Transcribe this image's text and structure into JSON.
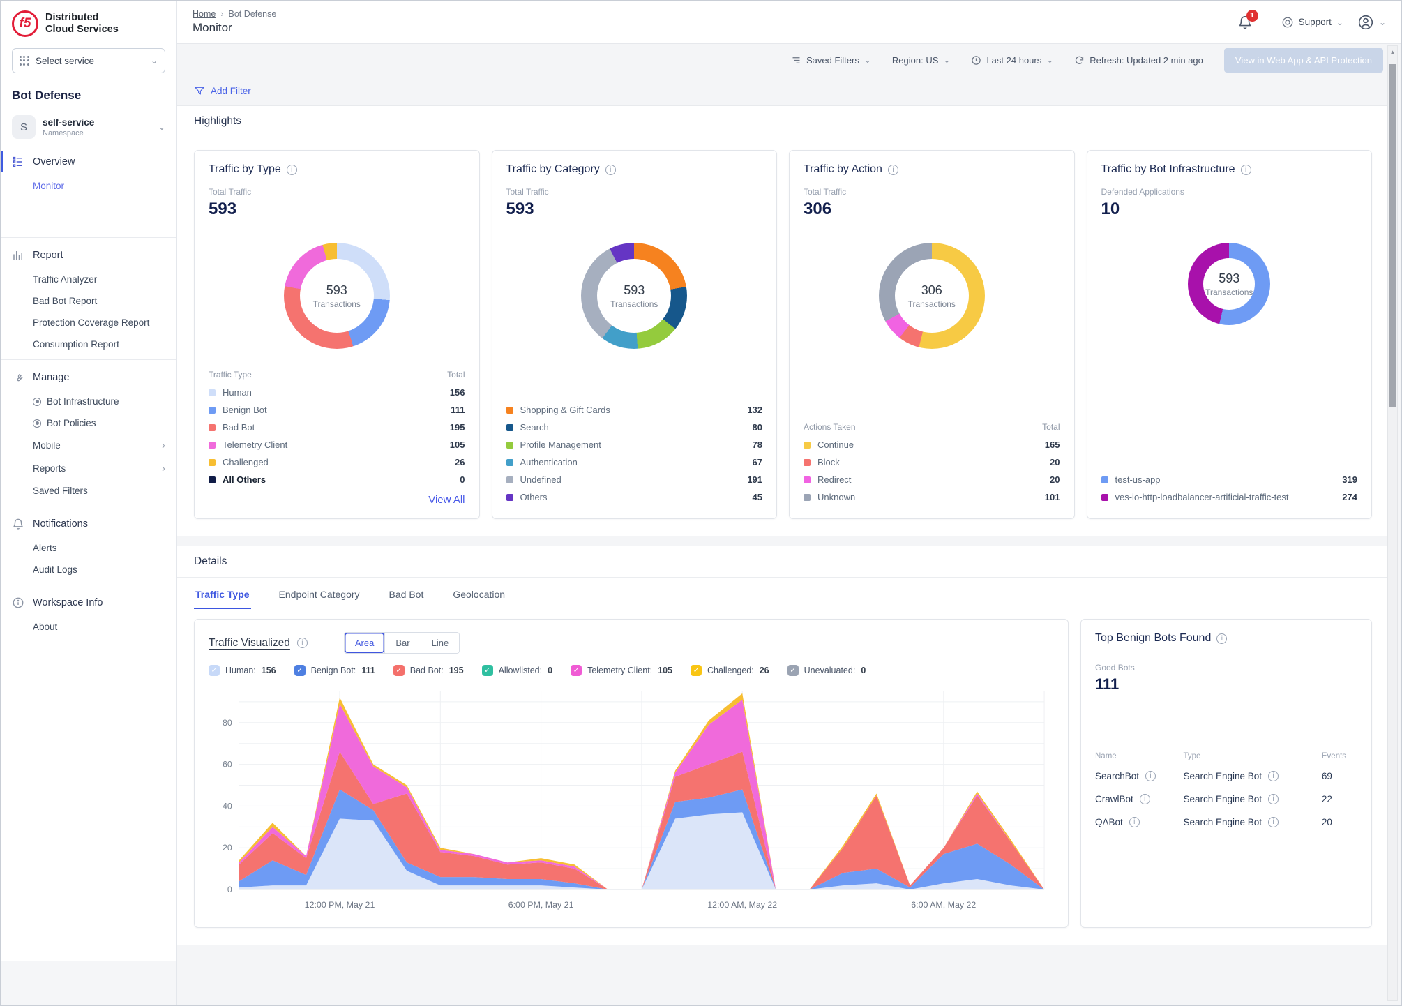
{
  "app": {
    "logo_text": "f5",
    "brand_line1": "Distributed",
    "brand_line2": "Cloud Services",
    "select_service": "Select service",
    "product": "Bot Defense",
    "namespace": {
      "initial": "S",
      "name": "self-service",
      "label": "Namespace"
    }
  },
  "sidebar": {
    "sections": [
      {
        "icon": "overview-icon",
        "label": "Overview",
        "active": true,
        "items": [
          {
            "label": "Monitor",
            "active": true
          }
        ]
      },
      {
        "icon": "report-icon",
        "label": "Report",
        "items": [
          {
            "label": "Traffic Analyzer"
          },
          {
            "label": "Bad Bot Report"
          },
          {
            "label": "Protection Coverage Report"
          },
          {
            "label": "Consumption Report"
          }
        ]
      },
      {
        "icon": "manage-icon",
        "label": "Manage",
        "items": [
          {
            "label": "Bot Infrastructure",
            "bullet": true
          },
          {
            "label": "Bot Policies",
            "bullet": true
          },
          {
            "label": "Mobile",
            "chevron": true
          },
          {
            "label": "Reports",
            "chevron": true
          },
          {
            "label": "Saved Filters"
          }
        ]
      },
      {
        "icon": "bell-icon",
        "label": "Notifications",
        "items": [
          {
            "label": "Alerts"
          },
          {
            "label": "Audit Logs"
          }
        ]
      },
      {
        "icon": "info-circle-icon",
        "label": "Workspace Info",
        "items": [
          {
            "label": "About"
          }
        ]
      }
    ]
  },
  "header": {
    "breadcrumb": {
      "home": "Home",
      "current": "Bot Defense"
    },
    "title": "Monitor",
    "notification_count": "1",
    "support_label": "Support"
  },
  "toolbar": {
    "saved_filters": "Saved Filters",
    "region": "Region: US",
    "time_range": "Last 24 hours",
    "refresh": "Refresh: Updated 2 min ago",
    "cta": "View in Web App & API Protection",
    "add_filter": "Add Filter"
  },
  "sections": {
    "highlights": "Highlights",
    "details": "Details"
  },
  "highlights": {
    "cards": [
      {
        "title": "Traffic by Type",
        "metric_label": "Total Traffic",
        "metric_value": "593",
        "center_value": "593",
        "center_label": "Transactions",
        "legend_header": {
          "name": "Traffic Type",
          "total": "Total"
        },
        "segments": [
          {
            "label": "Human",
            "value": 156,
            "color": "#cfdef9"
          },
          {
            "label": "Benign Bot",
            "value": 111,
            "color": "#6e9bf4"
          },
          {
            "label": "Bad Bot",
            "value": 195,
            "color": "#f5736f"
          },
          {
            "label": "Telemetry Client",
            "value": 105,
            "color": "#f06adb"
          },
          {
            "label": "Challenged",
            "value": 26,
            "color": "#f7be32"
          },
          {
            "label": "All Others",
            "value": 0,
            "color": "#101c47"
          }
        ],
        "view_all": "View All"
      },
      {
        "title": "Traffic by Category",
        "metric_label": "Total Traffic",
        "metric_value": "593",
        "center_value": "593",
        "center_label": "Transactions",
        "segments": [
          {
            "label": "Shopping & Gift Cards",
            "value": 132,
            "color": "#f6821f"
          },
          {
            "label": "Search",
            "value": 80,
            "color": "#16578b"
          },
          {
            "label": "Profile Management",
            "value": 78,
            "color": "#94cb3d"
          },
          {
            "label": "Authentication",
            "value": 67,
            "color": "#429fc9"
          },
          {
            "label": "Undefined",
            "value": 191,
            "color": "#a6afbf"
          },
          {
            "label": "Others",
            "value": 45,
            "color": "#6535c4"
          }
        ]
      },
      {
        "title": "Traffic by Action",
        "metric_label": "Total Traffic",
        "metric_value": "306",
        "center_value": "306",
        "center_label": "Transactions",
        "legend_header": {
          "name": "Actions Taken",
          "total": "Total"
        },
        "segments": [
          {
            "label": "Continue",
            "value": 165,
            "color": "#f7ca44"
          },
          {
            "label": "Block",
            "value": 20,
            "color": "#f5736f"
          },
          {
            "label": "Redirect",
            "value": 20,
            "color": "#f163e2"
          },
          {
            "label": "Unknown",
            "value": 101,
            "color": "#9ba4b5"
          }
        ]
      },
      {
        "title": "Traffic by Bot Infrastructure",
        "metric_label": "Defended Applications",
        "metric_value": "10",
        "center_value": "593",
        "center_label": "Transactions",
        "segments": [
          {
            "label": "test-us-app",
            "value": 319,
            "color": "#6e9bf4"
          },
          {
            "label": "ves-io-http-loadbalancer-artificial-traffic-test",
            "value": 274,
            "color": "#a811ab"
          }
        ]
      }
    ]
  },
  "details": {
    "tabs": [
      {
        "label": "Traffic Type",
        "active": true
      },
      {
        "label": "Endpoint Category"
      },
      {
        "label": "Bad Bot"
      },
      {
        "label": "Geolocation"
      }
    ],
    "chart_title": "Traffic Visualized",
    "chart_modes": [
      "Area",
      "Bar",
      "Line"
    ],
    "active_mode": "Area",
    "filters": [
      {
        "label": "Human",
        "value": "156",
        "color": "#c7d9f8",
        "checked": true
      },
      {
        "label": "Benign Bot",
        "value": "111",
        "color": "#4e7fe1",
        "checked": true
      },
      {
        "label": "Bad Bot",
        "value": "195",
        "color": "#f4706b",
        "checked": true
      },
      {
        "label": "Allowlisted",
        "value": "0",
        "color": "#2fbfa0",
        "checked": true
      },
      {
        "label": "Telemetry Client",
        "value": "105",
        "color": "#f05bd4",
        "checked": true
      },
      {
        "label": "Challenged",
        "value": "26",
        "color": "#f9c513",
        "checked": true
      },
      {
        "label": "Unevaluated",
        "value": "0",
        "color": "#9aa3b2",
        "checked": true
      }
    ],
    "top_bots": {
      "title": "Top Benign Bots Found",
      "metric_label": "Good Bots",
      "metric_value": "111",
      "columns": [
        "Name",
        "Type",
        "Events"
      ],
      "rows": [
        {
          "name": "SearchBot",
          "type": "Search Engine Bot",
          "events": "69"
        },
        {
          "name": "CrawlBot",
          "type": "Search Engine Bot",
          "events": "22"
        },
        {
          "name": "QABot",
          "type": "Search Engine Bot",
          "events": "20"
        }
      ]
    }
  },
  "chart_data": {
    "type": "area",
    "stacked": true,
    "title": "Traffic Visualized",
    "ylim": [
      0,
      95
    ],
    "y_ticks": [
      0,
      20,
      40,
      60,
      80
    ],
    "grid": true,
    "x_count": 25,
    "x_tick_indices": [
      3,
      9,
      15,
      21
    ],
    "x_tick_labels": [
      "12:00 PM, May 21",
      "6:00 PM, May 21",
      "12:00 AM, May 22",
      "6:00 AM, May 22"
    ],
    "series": [
      {
        "name": "Human",
        "color": "#dbe5f9",
        "values": [
          1,
          2,
          2,
          34,
          33,
          9,
          2,
          2,
          2,
          2,
          1,
          0,
          0,
          34,
          36,
          37,
          0,
          0,
          2,
          3,
          0,
          3,
          5,
          2,
          0
        ]
      },
      {
        "name": "Benign Bot",
        "color": "#6e9bf4",
        "values": [
          3,
          12,
          5,
          14,
          5,
          4,
          4,
          4,
          3,
          3,
          2,
          0,
          0,
          8,
          8,
          11,
          0,
          0,
          6,
          7,
          1,
          14,
          17,
          10,
          0
        ]
      },
      {
        "name": "Bad Bot",
        "color": "#f5736f",
        "values": [
          8,
          13,
          8,
          18,
          3,
          33,
          12,
          10,
          7,
          8,
          7,
          0,
          0,
          12,
          16,
          18,
          0,
          0,
          12,
          35,
          1,
          3,
          23,
          11,
          0
        ]
      },
      {
        "name": "Telemetry Client",
        "color": "#f06adb",
        "values": [
          1,
          3,
          1,
          23,
          18,
          3,
          1,
          1,
          1,
          1,
          1,
          0,
          0,
          2,
          19,
          25,
          0,
          0,
          0,
          0,
          0,
          0,
          1,
          0,
          0
        ]
      },
      {
        "name": "Challenged",
        "color": "#f7be32",
        "values": [
          1,
          2,
          0,
          3,
          1,
          1,
          1,
          0,
          0,
          1,
          1,
          0,
          0,
          1,
          2,
          3,
          0,
          0,
          1,
          1,
          0,
          0,
          1,
          1,
          0
        ]
      }
    ]
  }
}
